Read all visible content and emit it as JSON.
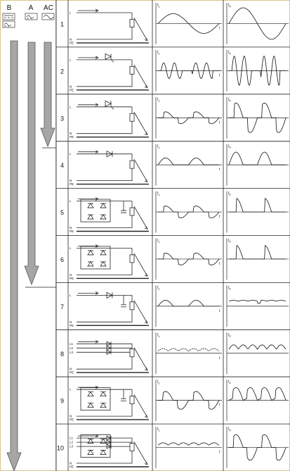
{
  "header": {
    "columns": [
      "B",
      "A",
      "AC"
    ]
  },
  "rows": [
    {
      "number": "1",
      "circuit_labels": [
        "L",
        "N",
        "PE"
      ],
      "current": {
        "symbol": "I",
        "subscript": "L"
      },
      "fault": {
        "symbol": "I",
        "subscript": "F"
      },
      "time": "t"
    },
    {
      "number": "2",
      "circuit_labels": [
        "L",
        "N",
        "PE"
      ],
      "current": {
        "symbol": "I",
        "subscript": "L"
      },
      "fault": {
        "symbol": "I",
        "subscript": "F"
      },
      "time": "t"
    },
    {
      "number": "3",
      "circuit_labels": [
        "L",
        "N",
        "PE"
      ],
      "current": {
        "symbol": "I",
        "subscript": "L"
      },
      "fault": {
        "symbol": "I",
        "subscript": "F"
      },
      "time": "t"
    },
    {
      "number": "4",
      "circuit_labels": [
        "L",
        "N",
        "PE"
      ],
      "current": {
        "symbol": "I",
        "subscript": "L"
      },
      "fault": {
        "symbol": "I",
        "subscript": "F"
      },
      "time": "t"
    },
    {
      "number": "5",
      "circuit_labels": [
        "L",
        "N",
        "PE"
      ],
      "current": {
        "symbol": "I",
        "subscript": "L"
      },
      "fault": {
        "symbol": "I",
        "subscript": "F"
      },
      "time": "t"
    },
    {
      "number": "6",
      "circuit_labels": [
        "L",
        "N",
        "PE"
      ],
      "current": {
        "symbol": "I",
        "subscript": "L"
      },
      "fault": {
        "symbol": "I",
        "subscript": "F"
      },
      "time": "t"
    },
    {
      "number": "7",
      "circuit_labels": [
        "L",
        "N",
        "PE"
      ],
      "current": {
        "symbol": "I",
        "subscript": "L"
      },
      "fault": {
        "symbol": "I",
        "subscript": "F"
      },
      "time": "t"
    },
    {
      "number": "8",
      "circuit_labels": [
        "L1",
        "L2",
        "L3",
        "N",
        "PE"
      ],
      "current": {
        "symbol": "I",
        "subscript": "L"
      },
      "fault": {
        "symbol": "I",
        "subscript": "F"
      },
      "time": "t"
    },
    {
      "number": "9",
      "circuit_labels": [
        "L",
        "N",
        "PE"
      ],
      "current": {
        "symbol": "I",
        "subscript": "L"
      },
      "fault": {
        "symbol": "I",
        "subscript": "F"
      },
      "time": "t"
    },
    {
      "number": "10",
      "circuit_labels": [
        "L1",
        "L2",
        "L3",
        "N",
        "PE"
      ],
      "current": {
        "symbol": "I",
        "subscript": "L"
      },
      "fault": {
        "symbol": "I",
        "subscript": "F"
      },
      "time": "t"
    }
  ]
}
